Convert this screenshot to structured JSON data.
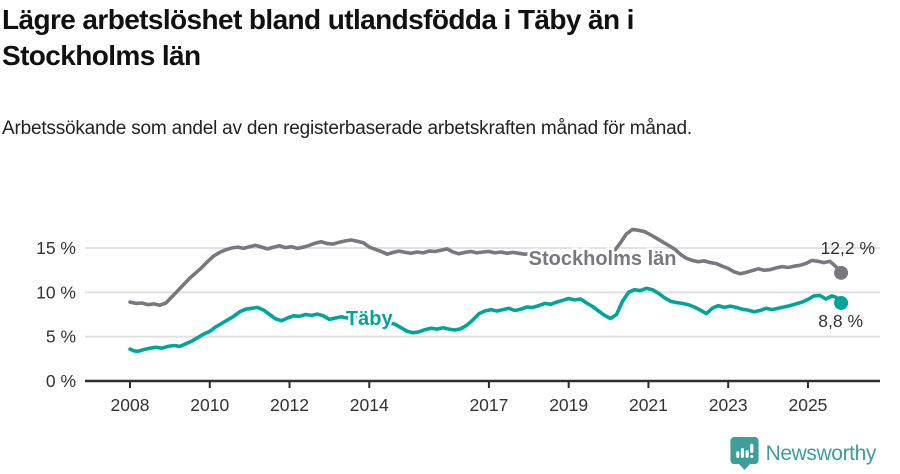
{
  "header": {
    "title": "Lägre arbetslöshet bland utlandsfödda i Täby än i Stockholms län",
    "subtitle": "Arbetssökande som andel av den registerbaserade arbetskraften månad för månad."
  },
  "chart_data": {
    "type": "line",
    "title": "",
    "xlabel": "",
    "ylabel": "",
    "grid": true,
    "x_range": [
      2006.9,
      2026.8
    ],
    "y_range": [
      0,
      17.5
    ],
    "x_ticks": [
      "2008",
      "2010",
      "2012",
      "2014",
      "2017",
      "2019",
      "2021",
      "2023",
      "2025"
    ],
    "x_tick_years": [
      2008,
      2010,
      2012,
      2014,
      2017,
      2019,
      2021,
      2023,
      2025
    ],
    "y_ticks": [
      "0 %",
      "5 %",
      "10 %",
      "15 %"
    ],
    "y_tick_values": [
      0,
      5,
      10,
      15
    ],
    "series": [
      {
        "name": "Stockholms län",
        "color": "#7a787e",
        "end_label": "12,2 %",
        "end_value": 12.2,
        "label_anchor": {
          "year": 2019.85,
          "pct": 13.85
        },
        "points": [
          [
            2008.0,
            8.9
          ],
          [
            2008.15,
            8.75
          ],
          [
            2008.3,
            8.8
          ],
          [
            2008.45,
            8.6
          ],
          [
            2008.6,
            8.7
          ],
          [
            2008.75,
            8.55
          ],
          [
            2008.9,
            8.8
          ],
          [
            2009.05,
            9.5
          ],
          [
            2009.2,
            10.2
          ],
          [
            2009.35,
            10.9
          ],
          [
            2009.5,
            11.6
          ],
          [
            2009.65,
            12.2
          ],
          [
            2009.8,
            12.8
          ],
          [
            2009.95,
            13.5
          ],
          [
            2010.1,
            14.1
          ],
          [
            2010.25,
            14.5
          ],
          [
            2010.4,
            14.8
          ],
          [
            2010.55,
            15.0
          ],
          [
            2010.7,
            15.1
          ],
          [
            2010.85,
            14.95
          ],
          [
            2011.0,
            15.15
          ],
          [
            2011.15,
            15.3
          ],
          [
            2011.3,
            15.1
          ],
          [
            2011.45,
            14.9
          ],
          [
            2011.6,
            15.1
          ],
          [
            2011.75,
            15.25
          ],
          [
            2011.9,
            15.05
          ],
          [
            2012.05,
            15.15
          ],
          [
            2012.2,
            14.95
          ],
          [
            2012.35,
            15.1
          ],
          [
            2012.5,
            15.3
          ],
          [
            2012.65,
            15.55
          ],
          [
            2012.8,
            15.7
          ],
          [
            2012.95,
            15.5
          ],
          [
            2013.1,
            15.45
          ],
          [
            2013.25,
            15.65
          ],
          [
            2013.4,
            15.8
          ],
          [
            2013.55,
            15.9
          ],
          [
            2013.7,
            15.75
          ],
          [
            2013.85,
            15.6
          ],
          [
            2014.0,
            15.1
          ],
          [
            2014.15,
            14.85
          ],
          [
            2014.3,
            14.6
          ],
          [
            2014.45,
            14.3
          ],
          [
            2014.6,
            14.5
          ],
          [
            2014.75,
            14.65
          ],
          [
            2014.9,
            14.5
          ],
          [
            2015.05,
            14.4
          ],
          [
            2015.2,
            14.55
          ],
          [
            2015.35,
            14.45
          ],
          [
            2015.5,
            14.65
          ],
          [
            2015.65,
            14.6
          ],
          [
            2015.8,
            14.75
          ],
          [
            2015.95,
            14.9
          ],
          [
            2016.1,
            14.55
          ],
          [
            2016.25,
            14.35
          ],
          [
            2016.4,
            14.5
          ],
          [
            2016.55,
            14.6
          ],
          [
            2016.7,
            14.45
          ],
          [
            2016.85,
            14.55
          ],
          [
            2017.0,
            14.6
          ],
          [
            2017.15,
            14.45
          ],
          [
            2017.3,
            14.55
          ],
          [
            2017.45,
            14.4
          ],
          [
            2017.6,
            14.5
          ],
          [
            2017.75,
            14.4
          ],
          [
            2017.9,
            14.3
          ],
          [
            2018.05,
            14.35
          ],
          [
            2018.2,
            14.25
          ],
          [
            2018.35,
            14.3
          ],
          [
            2018.5,
            14.15
          ],
          [
            2018.65,
            14.2
          ],
          [
            2018.8,
            14.05
          ],
          [
            2018.95,
            14.0
          ],
          [
            2019.1,
            13.9
          ],
          [
            2019.25,
            13.95
          ],
          [
            2019.4,
            13.85
          ],
          [
            2019.55,
            13.8
          ],
          [
            2019.7,
            13.85
          ],
          [
            2019.85,
            13.95
          ],
          [
            2020.0,
            14.1
          ],
          [
            2020.15,
            14.7
          ],
          [
            2020.3,
            15.6
          ],
          [
            2020.45,
            16.6
          ],
          [
            2020.6,
            17.1
          ],
          [
            2020.75,
            17.0
          ],
          [
            2020.9,
            16.85
          ],
          [
            2021.05,
            16.5
          ],
          [
            2021.2,
            16.1
          ],
          [
            2021.35,
            15.7
          ],
          [
            2021.5,
            15.3
          ],
          [
            2021.65,
            14.9
          ],
          [
            2021.8,
            14.3
          ],
          [
            2021.95,
            13.85
          ],
          [
            2022.1,
            13.6
          ],
          [
            2022.25,
            13.45
          ],
          [
            2022.4,
            13.55
          ],
          [
            2022.55,
            13.35
          ],
          [
            2022.7,
            13.25
          ],
          [
            2022.85,
            12.95
          ],
          [
            2023.0,
            12.7
          ],
          [
            2023.15,
            12.3
          ],
          [
            2023.3,
            12.1
          ],
          [
            2023.45,
            12.25
          ],
          [
            2023.6,
            12.45
          ],
          [
            2023.75,
            12.65
          ],
          [
            2023.9,
            12.5
          ],
          [
            2024.05,
            12.55
          ],
          [
            2024.2,
            12.75
          ],
          [
            2024.35,
            12.9
          ],
          [
            2024.5,
            12.8
          ],
          [
            2024.65,
            12.95
          ],
          [
            2024.8,
            13.05
          ],
          [
            2024.95,
            13.25
          ],
          [
            2025.1,
            13.6
          ],
          [
            2025.25,
            13.5
          ],
          [
            2025.4,
            13.35
          ],
          [
            2025.55,
            13.5
          ],
          [
            2025.7,
            12.9
          ],
          [
            2025.83,
            12.2
          ]
        ]
      },
      {
        "name": "Täby",
        "color": "#00a59a",
        "end_label": "8,8 %",
        "end_value": 8.8,
        "label_anchor": {
          "year": 2014.0,
          "pct": 7.1
        },
        "points": [
          [
            2008.0,
            3.6
          ],
          [
            2008.1,
            3.4
          ],
          [
            2008.2,
            3.35
          ],
          [
            2008.35,
            3.55
          ],
          [
            2008.5,
            3.7
          ],
          [
            2008.65,
            3.8
          ],
          [
            2008.8,
            3.7
          ],
          [
            2008.95,
            3.9
          ],
          [
            2009.1,
            4.0
          ],
          [
            2009.25,
            3.9
          ],
          [
            2009.4,
            4.2
          ],
          [
            2009.55,
            4.5
          ],
          [
            2009.7,
            4.9
          ],
          [
            2009.85,
            5.3
          ],
          [
            2010.0,
            5.6
          ],
          [
            2010.15,
            6.1
          ],
          [
            2010.3,
            6.5
          ],
          [
            2010.45,
            6.9
          ],
          [
            2010.6,
            7.3
          ],
          [
            2010.75,
            7.8
          ],
          [
            2010.9,
            8.1
          ],
          [
            2011.05,
            8.2
          ],
          [
            2011.2,
            8.3
          ],
          [
            2011.35,
            8.0
          ],
          [
            2011.5,
            7.5
          ],
          [
            2011.65,
            7.0
          ],
          [
            2011.8,
            6.8
          ],
          [
            2011.95,
            7.1
          ],
          [
            2012.1,
            7.35
          ],
          [
            2012.25,
            7.3
          ],
          [
            2012.4,
            7.5
          ],
          [
            2012.55,
            7.4
          ],
          [
            2012.7,
            7.55
          ],
          [
            2012.85,
            7.35
          ],
          [
            2013.0,
            6.95
          ],
          [
            2013.15,
            7.1
          ],
          [
            2013.3,
            7.25
          ],
          [
            2013.45,
            7.1
          ],
          [
            2013.6,
            7.2
          ],
          [
            2013.75,
            7.05
          ],
          [
            2013.9,
            6.9
          ],
          [
            2014.05,
            6.8
          ],
          [
            2014.2,
            6.7
          ],
          [
            2014.35,
            6.6
          ],
          [
            2014.5,
            6.55
          ],
          [
            2014.65,
            6.4
          ],
          [
            2014.8,
            6.0
          ],
          [
            2014.95,
            5.6
          ],
          [
            2015.1,
            5.45
          ],
          [
            2015.25,
            5.55
          ],
          [
            2015.4,
            5.8
          ],
          [
            2015.55,
            5.95
          ],
          [
            2015.7,
            5.85
          ],
          [
            2015.85,
            6.0
          ],
          [
            2016.0,
            5.85
          ],
          [
            2016.15,
            5.75
          ],
          [
            2016.3,
            5.9
          ],
          [
            2016.45,
            6.3
          ],
          [
            2016.6,
            6.9
          ],
          [
            2016.75,
            7.6
          ],
          [
            2016.9,
            7.9
          ],
          [
            2017.05,
            8.05
          ],
          [
            2017.2,
            7.9
          ],
          [
            2017.35,
            8.05
          ],
          [
            2017.5,
            8.2
          ],
          [
            2017.65,
            7.95
          ],
          [
            2017.8,
            8.1
          ],
          [
            2017.95,
            8.35
          ],
          [
            2018.1,
            8.3
          ],
          [
            2018.25,
            8.5
          ],
          [
            2018.4,
            8.75
          ],
          [
            2018.55,
            8.65
          ],
          [
            2018.7,
            8.9
          ],
          [
            2018.85,
            9.1
          ],
          [
            2019.0,
            9.3
          ],
          [
            2019.15,
            9.15
          ],
          [
            2019.3,
            9.25
          ],
          [
            2019.45,
            8.8
          ],
          [
            2019.6,
            8.4
          ],
          [
            2019.75,
            7.9
          ],
          [
            2019.9,
            7.4
          ],
          [
            2020.05,
            7.05
          ],
          [
            2020.2,
            7.5
          ],
          [
            2020.35,
            9.0
          ],
          [
            2020.5,
            10.0
          ],
          [
            2020.65,
            10.3
          ],
          [
            2020.8,
            10.2
          ],
          [
            2020.95,
            10.45
          ],
          [
            2021.1,
            10.3
          ],
          [
            2021.25,
            9.9
          ],
          [
            2021.4,
            9.4
          ],
          [
            2021.55,
            9.0
          ],
          [
            2021.7,
            8.85
          ],
          [
            2021.85,
            8.75
          ],
          [
            2022.0,
            8.6
          ],
          [
            2022.15,
            8.35
          ],
          [
            2022.3,
            8.0
          ],
          [
            2022.45,
            7.6
          ],
          [
            2022.6,
            8.2
          ],
          [
            2022.75,
            8.5
          ],
          [
            2022.9,
            8.3
          ],
          [
            2023.05,
            8.45
          ],
          [
            2023.2,
            8.3
          ],
          [
            2023.35,
            8.1
          ],
          [
            2023.5,
            8.0
          ],
          [
            2023.65,
            7.8
          ],
          [
            2023.8,
            7.95
          ],
          [
            2023.95,
            8.2
          ],
          [
            2024.1,
            8.05
          ],
          [
            2024.25,
            8.2
          ],
          [
            2024.4,
            8.35
          ],
          [
            2024.55,
            8.5
          ],
          [
            2024.7,
            8.7
          ],
          [
            2024.85,
            8.9
          ],
          [
            2025.0,
            9.2
          ],
          [
            2025.15,
            9.6
          ],
          [
            2025.3,
            9.65
          ],
          [
            2025.45,
            9.25
          ],
          [
            2025.6,
            9.6
          ],
          [
            2025.7,
            9.45
          ],
          [
            2025.83,
            8.8
          ]
        ]
      }
    ]
  },
  "footer": {
    "brand": "Newsworthy",
    "brand_color": "#3e9e9b"
  },
  "style": {
    "grid_color": "#e1e1e1",
    "axis_color": "#2e2e2e",
    "tick_label_color": "#333333"
  }
}
